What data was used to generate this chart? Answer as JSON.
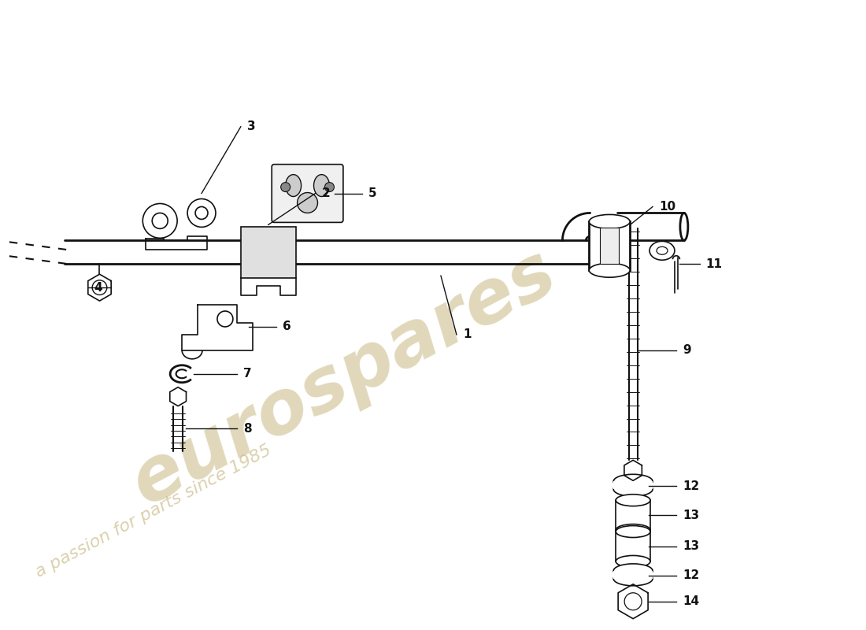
{
  "background_color": "#ffffff",
  "line_color": "#111111",
  "watermark_color_main": "#c8b882",
  "watermark_color_sub": "#c8b882",
  "watermark_text1": "eurospares",
  "watermark_text2": "a passion for parts since 1985",
  "fig_w": 11.0,
  "fig_h": 8.0,
  "dpi": 100
}
